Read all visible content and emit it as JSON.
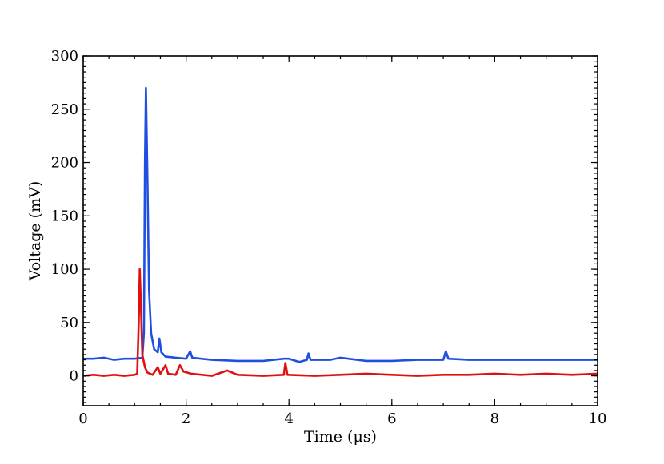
{
  "chart_data": {
    "type": "line",
    "title": "",
    "xlabel": "Time (μs)",
    "ylabel": "Voltage (mV)",
    "xlim": [
      0,
      10
    ],
    "ylim": [
      -28,
      300
    ],
    "xticks": [
      0,
      2,
      4,
      6,
      8,
      10
    ],
    "yticks": [
      0,
      50,
      100,
      150,
      200,
      250,
      300
    ],
    "xtick_labels": [
      "0",
      "2",
      "4",
      "6",
      "8",
      "10"
    ],
    "ytick_labels": [
      "0",
      "50",
      "100",
      "150",
      "200",
      "250",
      "300"
    ],
    "grid": false,
    "legend": "none",
    "series": [
      {
        "color": "#1f4fe0",
        "points": [
          [
            0,
            16
          ],
          [
            0.2,
            16
          ],
          [
            0.4,
            17
          ],
          [
            0.6,
            15
          ],
          [
            0.8,
            16
          ],
          [
            1.0,
            16
          ],
          [
            1.15,
            17
          ],
          [
            1.18,
            40
          ],
          [
            1.2,
            200
          ],
          [
            1.22,
            270
          ],
          [
            1.25,
            180
          ],
          [
            1.28,
            80
          ],
          [
            1.32,
            40
          ],
          [
            1.38,
            25
          ],
          [
            1.45,
            22
          ],
          [
            1.48,
            35
          ],
          [
            1.52,
            22
          ],
          [
            1.6,
            18
          ],
          [
            1.8,
            17
          ],
          [
            2.0,
            16
          ],
          [
            2.08,
            23
          ],
          [
            2.12,
            17
          ],
          [
            2.5,
            15
          ],
          [
            3.0,
            14
          ],
          [
            3.5,
            14
          ],
          [
            3.9,
            16
          ],
          [
            4.0,
            16
          ],
          [
            4.2,
            13
          ],
          [
            4.35,
            15
          ],
          [
            4.38,
            21
          ],
          [
            4.42,
            15
          ],
          [
            4.8,
            15
          ],
          [
            5.0,
            17
          ],
          [
            5.5,
            14
          ],
          [
            6.0,
            14
          ],
          [
            6.5,
            15
          ],
          [
            7.0,
            15
          ],
          [
            7.05,
            23
          ],
          [
            7.1,
            16
          ],
          [
            7.5,
            15
          ],
          [
            8.0,
            15
          ],
          [
            8.5,
            15
          ],
          [
            9.0,
            15
          ],
          [
            9.5,
            15
          ],
          [
            10,
            15
          ]
        ]
      },
      {
        "color": "#e01010",
        "points": [
          [
            0,
            0
          ],
          [
            0.2,
            1
          ],
          [
            0.4,
            0
          ],
          [
            0.6,
            1
          ],
          [
            0.8,
            0
          ],
          [
            1.0,
            1
          ],
          [
            1.05,
            2
          ],
          [
            1.08,
            50
          ],
          [
            1.1,
            100
          ],
          [
            1.12,
            70
          ],
          [
            1.15,
            20
          ],
          [
            1.2,
            8
          ],
          [
            1.25,
            3
          ],
          [
            1.35,
            1
          ],
          [
            1.45,
            8
          ],
          [
            1.5,
            2
          ],
          [
            1.6,
            10
          ],
          [
            1.65,
            2
          ],
          [
            1.8,
            1
          ],
          [
            1.88,
            10
          ],
          [
            1.95,
            4
          ],
          [
            2.1,
            2
          ],
          [
            2.5,
            0
          ],
          [
            2.8,
            5
          ],
          [
            3.0,
            1
          ],
          [
            3.5,
            0
          ],
          [
            3.9,
            1
          ],
          [
            3.93,
            12
          ],
          [
            3.97,
            1
          ],
          [
            4.5,
            0
          ],
          [
            5.0,
            1
          ],
          [
            5.5,
            2
          ],
          [
            6.0,
            1
          ],
          [
            6.5,
            0
          ],
          [
            7.0,
            1
          ],
          [
            7.5,
            1
          ],
          [
            8.0,
            2
          ],
          [
            8.5,
            1
          ],
          [
            9.0,
            2
          ],
          [
            9.5,
            1
          ],
          [
            10,
            2
          ]
        ]
      }
    ]
  }
}
